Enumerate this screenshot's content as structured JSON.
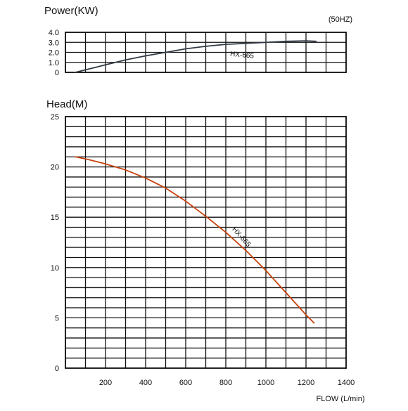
{
  "chart_data": [
    {
      "type": "line",
      "title": "Power(KW)",
      "annotation": "(50HZ)",
      "xlim": [
        0,
        1400
      ],
      "ylim": [
        0,
        4
      ],
      "yticks": [
        "0",
        "1.0",
        "2.0",
        "3.0",
        "4.0"
      ],
      "grid": true,
      "series": [
        {
          "name": "HX-665",
          "color": "#333a45",
          "x": [
            50,
            100,
            200,
            300,
            400,
            500,
            600,
            700,
            800,
            900,
            1000,
            1100,
            1200,
            1250
          ],
          "y": [
            0.0,
            0.25,
            0.75,
            1.25,
            1.65,
            2.0,
            2.35,
            2.6,
            2.8,
            2.9,
            3.0,
            3.1,
            3.15,
            3.1
          ]
        }
      ]
    },
    {
      "type": "line",
      "title": "Head(M)",
      "xlabel": "FLOW (L/min)",
      "xlim": [
        0,
        1400
      ],
      "ylim": [
        0,
        25
      ],
      "xticks": [
        "200",
        "400",
        "600",
        "800",
        "1000",
        "1200",
        "1400"
      ],
      "yticks": [
        "0",
        "5",
        "10",
        "15",
        "20",
        "25"
      ],
      "grid": true,
      "series": [
        {
          "name": "HX-665",
          "color": "#c8410c",
          "x": [
            50,
            100,
            200,
            300,
            400,
            500,
            600,
            700,
            800,
            900,
            1000,
            1100,
            1200,
            1240
          ],
          "y": [
            21.0,
            20.8,
            20.3,
            19.7,
            18.9,
            17.9,
            16.6,
            15.1,
            13.5,
            11.7,
            9.7,
            7.5,
            5.3,
            4.5
          ]
        }
      ]
    }
  ]
}
